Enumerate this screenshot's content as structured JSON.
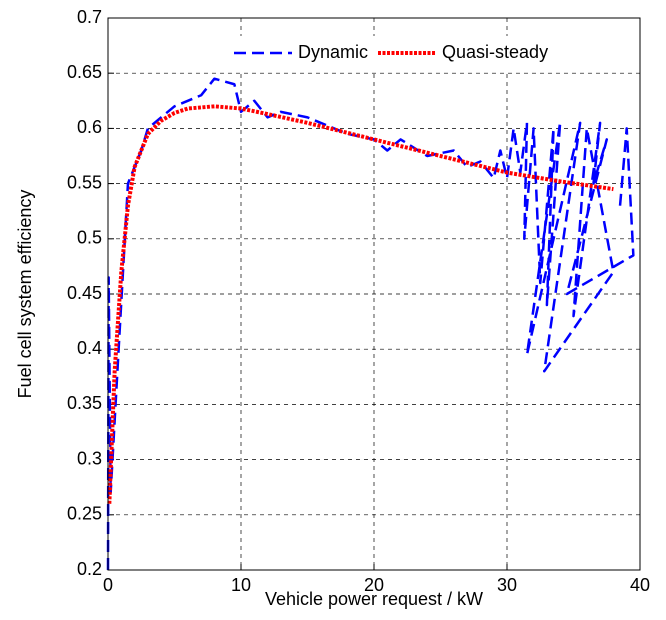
{
  "chart_data": {
    "type": "line",
    "xlabel": "Vehicle power request / kW",
    "ylabel": "Fuel cell system efficiency",
    "xlim": [
      0,
      40
    ],
    "xticks": [
      0,
      10,
      20,
      30,
      40
    ],
    "ylim": [
      0.2,
      0.7
    ],
    "yticks": [
      0.2,
      0.25,
      0.3,
      0.35,
      0.4,
      0.45,
      0.5,
      0.55,
      0.6,
      0.65,
      0.7
    ],
    "grid": true,
    "legend": "top-right",
    "series": [
      {
        "name": "Dynamic",
        "color": "#0000ff",
        "style": "dashed",
        "x": [
          0,
          0.05,
          0.2,
          0.8,
          1.5,
          2.5,
          3,
          4,
          5,
          6,
          7,
          8,
          9.5,
          10,
          11,
          12,
          13,
          15,
          17,
          18,
          20,
          21,
          22,
          24,
          26,
          27,
          28,
          29,
          29.5,
          30,
          30.5,
          31,
          31.5,
          31.3,
          32,
          32.5,
          33.5,
          33,
          34,
          31.5,
          33.5,
          35.5,
          32.8,
          38,
          36,
          35,
          37,
          36.5,
          37.5,
          34.5,
          39.5,
          39,
          38.5
        ],
        "values": [
          0.2,
          0.465,
          0.27,
          0.4,
          0.55,
          0.58,
          0.6,
          0.61,
          0.62,
          0.625,
          0.63,
          0.645,
          0.64,
          0.615,
          0.625,
          0.61,
          0.615,
          0.61,
          0.6,
          0.595,
          0.59,
          0.58,
          0.59,
          0.575,
          0.58,
          0.565,
          0.57,
          0.555,
          0.58,
          0.555,
          0.6,
          0.56,
          0.605,
          0.5,
          0.6,
          0.46,
          0.6,
          0.44,
          0.606,
          0.395,
          0.5,
          0.605,
          0.38,
          0.47,
          0.6,
          0.43,
          0.605,
          0.55,
          0.59,
          0.45,
          0.485,
          0.6,
          0.53
        ]
      },
      {
        "name": "Quasi-steady",
        "color": "#ff0000",
        "style": "dotted",
        "x": [
          0.1,
          0.5,
          1,
          1.5,
          2,
          3,
          4,
          5,
          6,
          8,
          10,
          12,
          15,
          20,
          25,
          30,
          34,
          38
        ],
        "values": [
          0.26,
          0.38,
          0.47,
          0.53,
          0.565,
          0.595,
          0.607,
          0.614,
          0.618,
          0.62,
          0.618,
          0.613,
          0.605,
          0.59,
          0.575,
          0.56,
          0.552,
          0.545
        ]
      }
    ]
  }
}
